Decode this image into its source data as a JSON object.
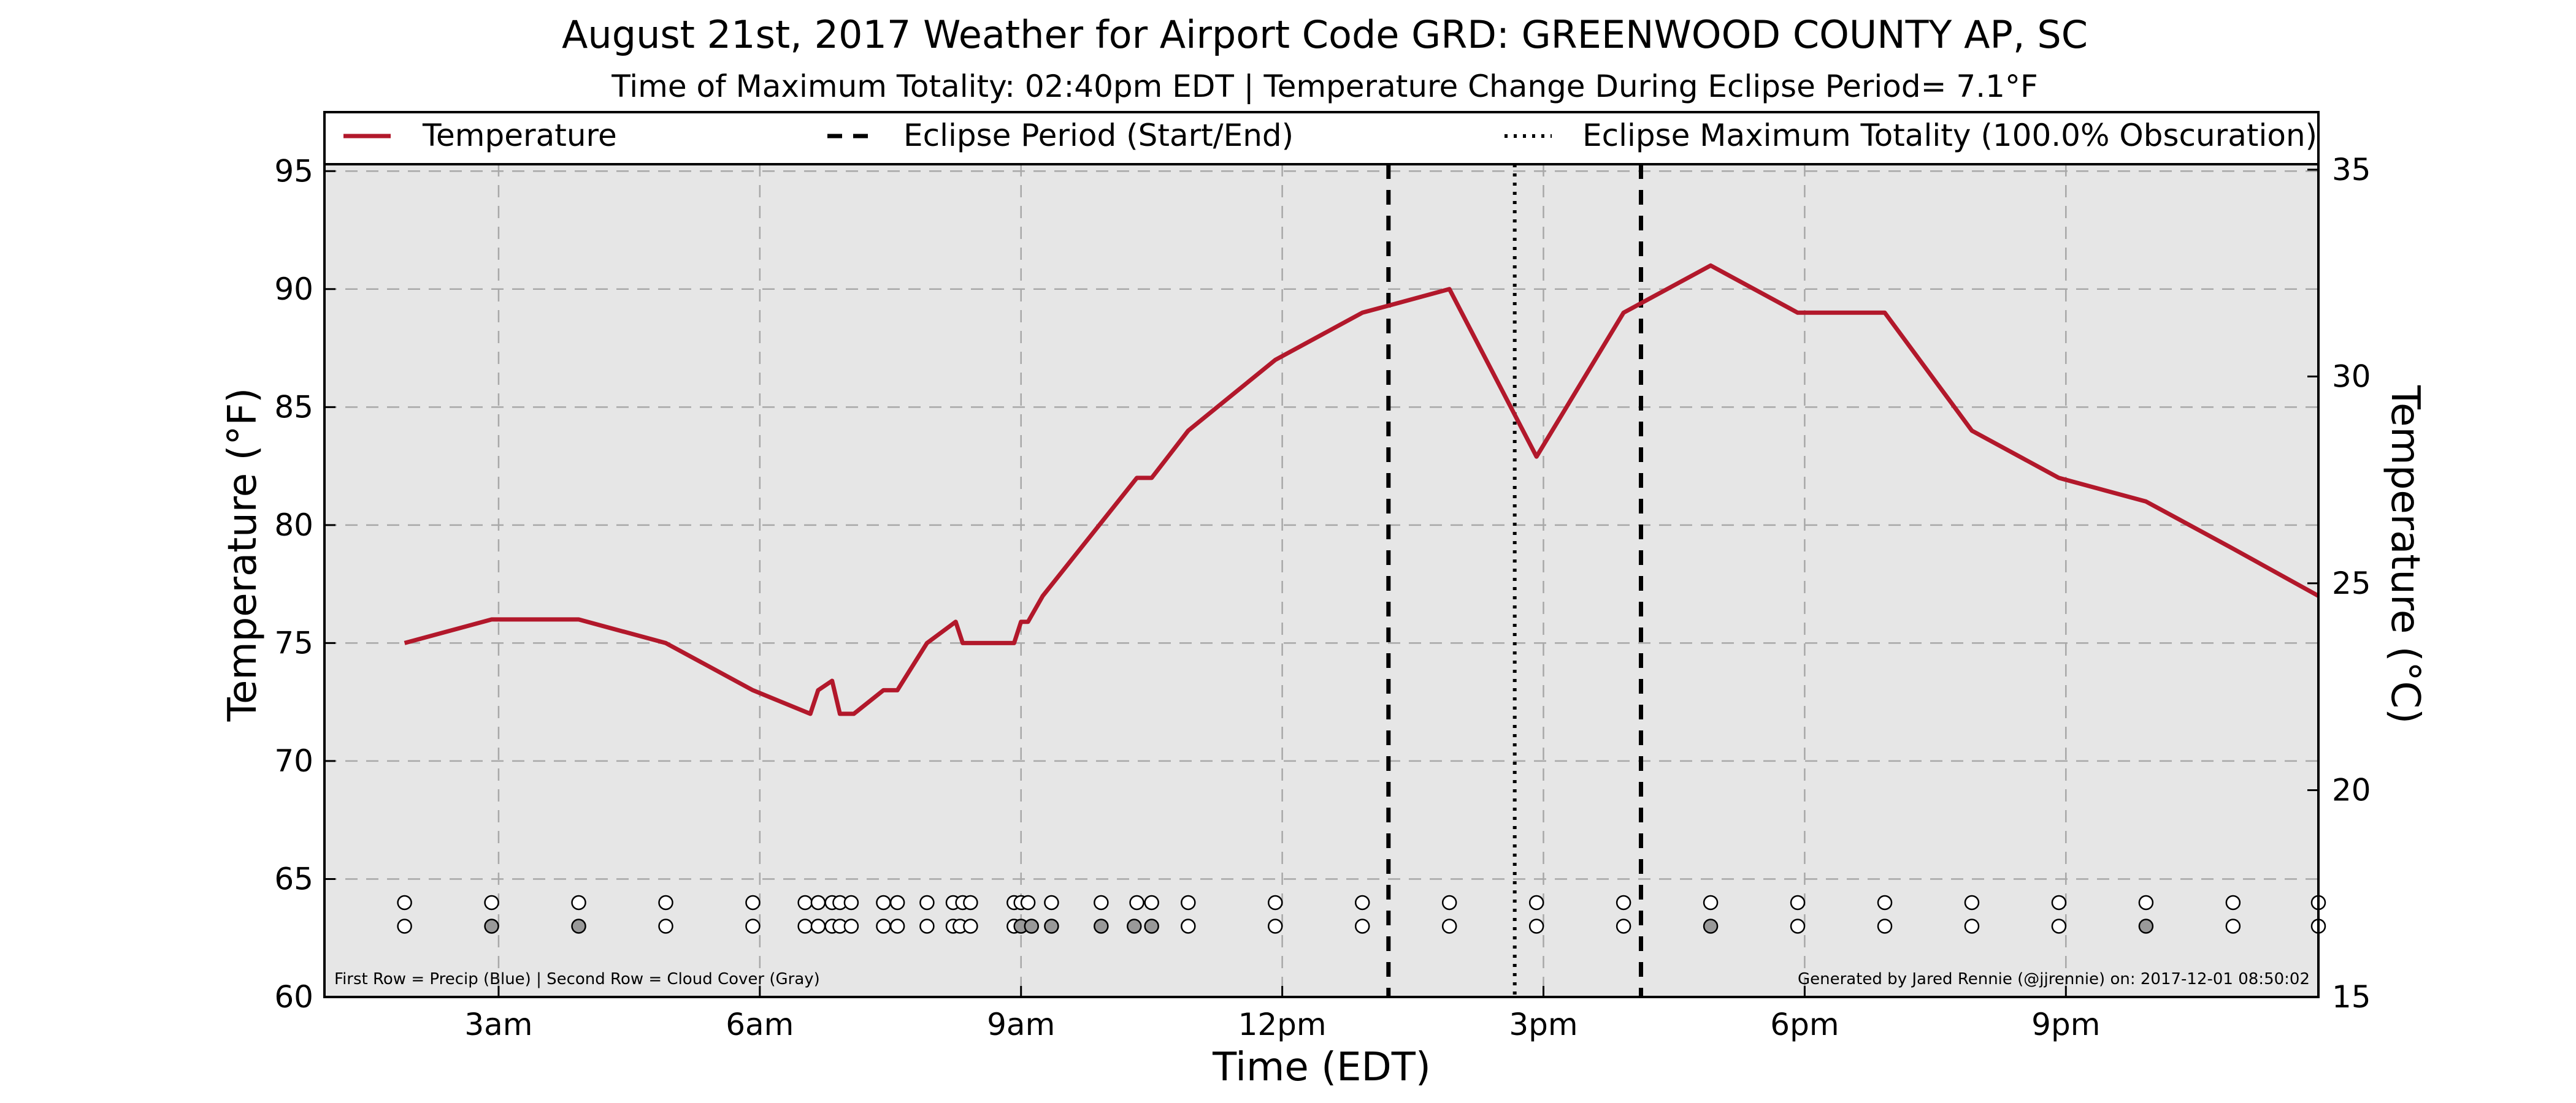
{
  "chart_data": {
    "type": "line",
    "title": "August 21st, 2017 Weather for Airport Code GRD: GREENWOOD COUNTY AP, SC",
    "subtitle": "Time of Maximum Totality: 02:40pm EDT | Temperature Change During Eclipse Period= 7.1°F",
    "xlabel": "Time (EDT)",
    "ylabel_left": "Temperature (°F)",
    "ylabel_right": "Temperature (°C)",
    "xlim": [
      1.0,
      23.9
    ],
    "ylim_f": [
      60,
      97.5
    ],
    "ylim_c": [
      15,
      36.39
    ],
    "x_ticks": [
      {
        "x": 3,
        "label": "3am"
      },
      {
        "x": 6,
        "label": "6am"
      },
      {
        "x": 9,
        "label": "9am"
      },
      {
        "x": 12,
        "label": "12pm"
      },
      {
        "x": 15,
        "label": "3pm"
      },
      {
        "x": 18,
        "label": "6pm"
      },
      {
        "x": 21,
        "label": "9pm"
      }
    ],
    "y_ticks_left": [
      60,
      65,
      70,
      75,
      80,
      85,
      90,
      95
    ],
    "y_ticks_right": [
      15,
      20,
      25,
      30,
      35
    ],
    "grid": true,
    "legend": {
      "placement": "top",
      "entries": [
        {
          "label": "Temperature",
          "style": "solid"
        },
        {
          "label": "Eclipse Period (Start/End)",
          "style": "dashed"
        },
        {
          "label": "Eclipse Maximum Totality (100.0% Obscuration)",
          "style": "dotted"
        }
      ]
    },
    "series": [
      {
        "name": "Temperature",
        "color": "#b2182b",
        "x": [
          1.92,
          2.92,
          3.92,
          4.92,
          5.92,
          6.58,
          6.67,
          6.83,
          6.92,
          7.08,
          7.42,
          7.58,
          7.92,
          8.25,
          8.33,
          8.42,
          8.92,
          9.0,
          9.08,
          9.25,
          10.33,
          10.5,
          10.92,
          11.92,
          12.92,
          13.92,
          14.92,
          15.92,
          16.92,
          17.92,
          18.92,
          19.92,
          20.92,
          21.92,
          22.92,
          23.9
        ],
        "y": [
          75,
          76,
          76,
          75,
          73,
          72,
          73,
          73.4,
          72,
          72,
          73,
          73,
          75,
          75.9,
          75,
          75,
          75,
          75.9,
          75.9,
          77,
          82,
          82,
          84,
          87,
          89,
          90,
          82.9,
          89,
          91,
          89,
          89,
          84,
          82,
          81,
          79,
          77
        ]
      }
    ],
    "eclipse_start": 13.22,
    "eclipse_end": 16.12,
    "eclipse_max": 14.67,
    "obs_rows": {
      "precip_row_y": 64,
      "cloud_row_y": 63,
      "precip_x": [
        1.92,
        2.92,
        3.92,
        4.92,
        5.92,
        6.52,
        6.67,
        6.83,
        6.92,
        7.05,
        7.42,
        7.58,
        7.92,
        8.22,
        8.33,
        8.42,
        8.92,
        9.0,
        9.08,
        9.35,
        9.92,
        10.33,
        10.5,
        10.92,
        11.92,
        12.92,
        13.92,
        14.92,
        15.92,
        16.92,
        17.92,
        18.92,
        19.92,
        20.92,
        21.92,
        22.92,
        23.9
      ],
      "cloud_points": [
        {
          "x": 1.92,
          "color": "#ffffff"
        },
        {
          "x": 2.92,
          "color": "#999999"
        },
        {
          "x": 3.92,
          "color": "#999999"
        },
        {
          "x": 4.92,
          "color": "#ffffff"
        },
        {
          "x": 5.92,
          "color": "#ffffff"
        },
        {
          "x": 6.52,
          "color": "#ffffff"
        },
        {
          "x": 6.67,
          "color": "#ffffff"
        },
        {
          "x": 6.83,
          "color": "#ffffff"
        },
        {
          "x": 6.92,
          "color": "#ffffff"
        },
        {
          "x": 7.05,
          "color": "#ffffff"
        },
        {
          "x": 7.42,
          "color": "#ffffff"
        },
        {
          "x": 7.58,
          "color": "#ffffff"
        },
        {
          "x": 7.92,
          "color": "#ffffff"
        },
        {
          "x": 8.22,
          "color": "#ffffff"
        },
        {
          "x": 8.3,
          "color": "#ffffff"
        },
        {
          "x": 8.42,
          "color": "#ffffff"
        },
        {
          "x": 8.92,
          "color": "#ffffff"
        },
        {
          "x": 9.0,
          "color": "#999999"
        },
        {
          "x": 9.12,
          "color": "#999999"
        },
        {
          "x": 9.35,
          "color": "#999999"
        },
        {
          "x": 9.92,
          "color": "#999999"
        },
        {
          "x": 10.3,
          "color": "#999999"
        },
        {
          "x": 10.5,
          "color": "#999999"
        },
        {
          "x": 10.92,
          "color": "#ffffff"
        },
        {
          "x": 11.92,
          "color": "#ffffff"
        },
        {
          "x": 12.92,
          "color": "#ffffff"
        },
        {
          "x": 13.92,
          "color": "#ffffff"
        },
        {
          "x": 14.92,
          "color": "#ffffff"
        },
        {
          "x": 15.92,
          "color": "#ffffff"
        },
        {
          "x": 16.92,
          "color": "#999999"
        },
        {
          "x": 17.92,
          "color": "#ffffff"
        },
        {
          "x": 18.92,
          "color": "#ffffff"
        },
        {
          "x": 19.92,
          "color": "#ffffff"
        },
        {
          "x": 20.92,
          "color": "#ffffff"
        },
        {
          "x": 21.92,
          "color": "#999999"
        },
        {
          "x": 22.92,
          "color": "#ffffff"
        },
        {
          "x": 23.9,
          "color": "#ffffff"
        }
      ]
    },
    "footnote_left": "First Row = Precip (Blue) | Second Row = Cloud Cover (Gray)",
    "footnote_right": "Generated by Jared Rennie (@jjrennie) on: 2017-12-01 08:50:02",
    "colors": {
      "plot_background": "#e6e6e6",
      "temperature_line": "#b2182b",
      "grid": "#a8a8a8"
    }
  }
}
